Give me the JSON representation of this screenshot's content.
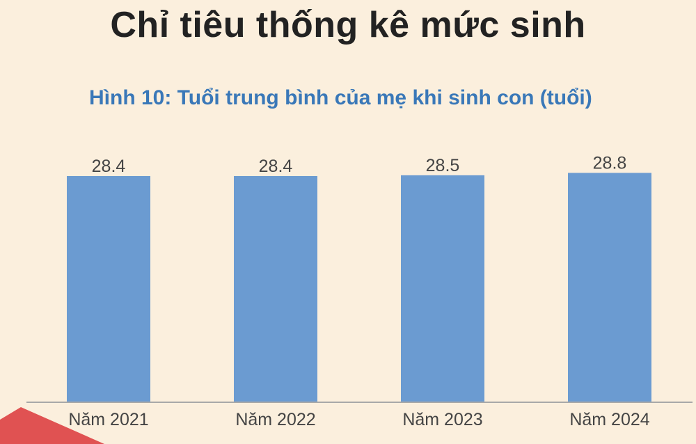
{
  "header": {
    "title": "Chỉ tiêu thống kê mức sinh"
  },
  "chart_data": {
    "type": "bar",
    "title": "Hình 10: Tuổi trung bình của mẹ khi sinh con (tuổi)",
    "categories": [
      "Năm 2021",
      "Năm 2022",
      "Năm 2023",
      "Năm 2024"
    ],
    "values": [
      28.4,
      28.4,
      28.5,
      28.8
    ],
    "data_labels": [
      "28.4",
      "28.4",
      "28.5",
      "28.8"
    ],
    "xlabel": "",
    "ylabel": "",
    "grid": false,
    "legend": "none",
    "bar_color": "#6b9bd1"
  },
  "colors": {
    "background": "#fbefdd",
    "title": "#222222",
    "chart_title": "#3a78b8",
    "accent": "#e05252"
  }
}
